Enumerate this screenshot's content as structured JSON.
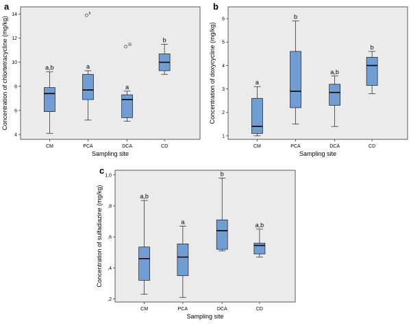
{
  "colors": {
    "plot_bg": "#ebebeb",
    "box_fill": "#6f9dd4",
    "box_stroke": "#1a1a1a",
    "axis": "#333333"
  },
  "chart_data": [
    {
      "panel": "a",
      "type": "boxplot",
      "xlabel": "Sampling site",
      "ylabel": "Concentration of chlortetracycline (mg/kg)",
      "categories": [
        "CM",
        "PCA",
        "DCA",
        "CD"
      ],
      "ylim": [
        3.6,
        14.6
      ],
      "yticks": [
        4,
        6,
        8,
        10,
        12,
        14
      ],
      "ytick_labels": [
        "4",
        "6",
        "8",
        "10",
        "12",
        "14"
      ],
      "boxes": [
        {
          "min": 4.1,
          "q1": 5.9,
          "median": 7.4,
          "q3": 7.9,
          "max": 9.2,
          "label": "a,b"
        },
        {
          "min": 5.2,
          "q1": 6.9,
          "median": 7.7,
          "q3": 9.0,
          "max": 9.3,
          "label": "a"
        },
        {
          "min": 5.1,
          "q1": 5.4,
          "median": 6.9,
          "q3": 7.3,
          "max": 7.6,
          "label": "a"
        },
        {
          "min": 9.0,
          "q1": 9.3,
          "median": 10.0,
          "q3": 10.7,
          "max": 11.5,
          "label": "b"
        }
      ],
      "outliers": [
        {
          "category": "PCA",
          "value": 13.9,
          "label": "9"
        },
        {
          "category": "DCA",
          "value": 11.3,
          "label": "15"
        }
      ]
    },
    {
      "panel": "b",
      "type": "boxplot",
      "xlabel": "Sampling site",
      "ylabel": "Concentration of doxycycline (mg/kg)",
      "categories": [
        "CM",
        "PCA",
        "DCA",
        "CD"
      ],
      "ylim": [
        0.85,
        6.5
      ],
      "yticks": [
        1,
        2,
        3,
        4,
        5,
        6
      ],
      "ytick_labels": [
        "1",
        "2",
        "3",
        "4",
        "5",
        "6"
      ],
      "boxes": [
        {
          "min": 1.0,
          "q1": 1.1,
          "median": 1.4,
          "q3": 2.6,
          "max": 3.1,
          "label": "a"
        },
        {
          "min": 1.5,
          "q1": 2.2,
          "median": 2.9,
          "q3": 4.6,
          "max": 5.9,
          "label": "b"
        },
        {
          "min": 1.4,
          "q1": 2.3,
          "median": 2.85,
          "q3": 3.2,
          "max": 3.55,
          "label": "a,b"
        },
        {
          "min": 2.8,
          "q1": 3.15,
          "median": 4.0,
          "q3": 4.35,
          "max": 4.6,
          "label": "b"
        }
      ],
      "outliers": []
    },
    {
      "panel": "c",
      "type": "boxplot",
      "xlabel": "Sampling site",
      "ylabel": "Concentration of sulfadiazine (mg/kg)",
      "categories": [
        "CM",
        "PCA",
        "DCA",
        "CD"
      ],
      "ylim": [
        0.18,
        1.03
      ],
      "yticks": [
        0.2,
        0.4,
        0.6,
        0.8,
        1.0
      ],
      "ytick_labels": [
        ",2",
        ",4",
        ",6",
        ",8",
        "1,0"
      ],
      "boxes": [
        {
          "min": 0.23,
          "q1": 0.32,
          "median": 0.46,
          "q3": 0.535,
          "max": 0.835,
          "label": "a,b"
        },
        {
          "min": 0.21,
          "q1": 0.35,
          "median": 0.47,
          "q3": 0.555,
          "max": 0.67,
          "label": "a"
        },
        {
          "min": 0.51,
          "q1": 0.52,
          "median": 0.64,
          "q3": 0.71,
          "max": 0.98,
          "label": "b"
        },
        {
          "min": 0.47,
          "q1": 0.49,
          "median": 0.545,
          "q3": 0.56,
          "max": 0.65,
          "label": "a,b"
        }
      ],
      "outliers": []
    }
  ]
}
